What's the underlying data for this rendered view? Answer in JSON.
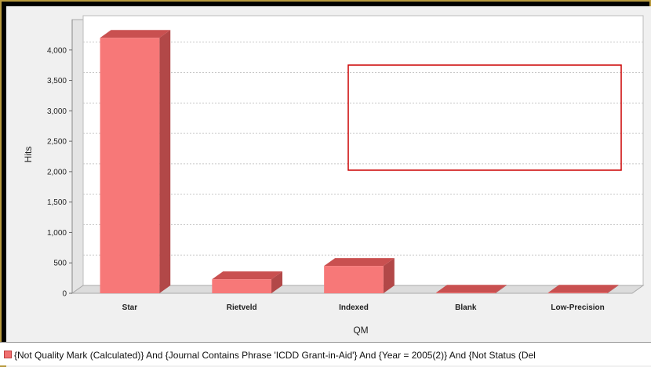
{
  "colors": {
    "bar_front": "#f77878",
    "bar_top": "#c95050",
    "bar_side": "#b24848",
    "highlight_box": "#cc0000",
    "frame": "#b89a3e"
  },
  "chart_data": {
    "type": "bar",
    "categories": [
      "Star",
      "Rietveld",
      "Indexed",
      "Blank",
      "Low-Precision"
    ],
    "series": [
      {
        "name": "{Not Quality Mark (Calculated)} And {Journal Contains Phrase 'ICDD Grant-in-Aid'} And {Year = 2005(2)} And {Not Status (Del",
        "values": [
          4200,
          230,
          450,
          10,
          10
        ]
      }
    ],
    "xlabel": "QM",
    "ylabel": "Hits",
    "ylim": [
      0,
      4500
    ],
    "yticks": [
      0,
      500,
      1000,
      1500,
      2000,
      2500,
      3000,
      3500,
      4000
    ],
    "ytick_labels": [
      "0",
      "500",
      "1,000",
      "1,500",
      "2,000",
      "2,500",
      "3,000",
      "3,500",
      "4,000"
    ],
    "grid": true,
    "style": "3d",
    "legend_position": "bottom"
  }
}
